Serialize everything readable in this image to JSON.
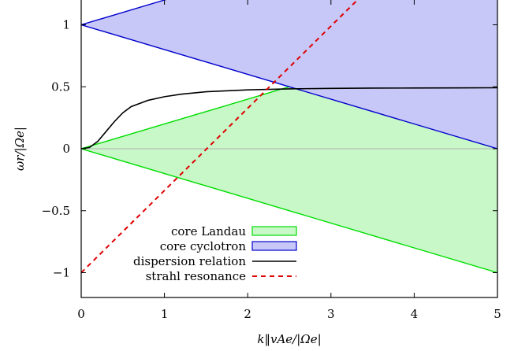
{
  "chart_data": {
    "type": "line",
    "title": "",
    "xlabel": "k‖vAe/|Ωe|",
    "ylabel": "ωr/|Ωe|",
    "xlim": [
      0,
      5
    ],
    "ylim": [
      -1.2,
      1.2
    ],
    "x_ticks": [
      0,
      1,
      2,
      3,
      4,
      5
    ],
    "x_tick_labels": [
      "0",
      "1",
      "2",
      "3",
      "4",
      "5"
    ],
    "y_ticks": [
      -1,
      -0.5,
      0,
      0.5,
      1
    ],
    "y_tick_labels": [
      "−1",
      "−0.5",
      "0",
      "0.5",
      "1"
    ],
    "zero_line": true,
    "legend_position": "bottom-left",
    "series": [
      {
        "name": "core Landau",
        "kind": "band",
        "color": "#00dd00",
        "fill": "#c8f8c8",
        "upper": {
          "x": [
            0,
            5
          ],
          "y": [
            0,
            1
          ]
        },
        "lower": {
          "x": [
            0,
            5
          ],
          "y": [
            0,
            -1
          ]
        }
      },
      {
        "name": "core cyclotron",
        "kind": "band",
        "color": "#0000cc",
        "fill": "#c8c8f8",
        "upper": {
          "x": [
            0,
            1.0,
            5
          ],
          "y": [
            1,
            1.2,
            2
          ]
        },
        "lower": {
          "x": [
            0,
            5
          ],
          "y": [
            1,
            0
          ]
        }
      },
      {
        "name": "dispersion relation",
        "kind": "line",
        "color": "#000000",
        "dash": "none",
        "x": [
          0,
          0.1,
          0.2,
          0.3,
          0.4,
          0.5,
          0.6,
          0.8,
          1.0,
          1.2,
          1.5,
          2.0,
          2.5,
          3.0,
          3.5,
          4.0,
          4.5,
          5.0
        ],
        "y": [
          0,
          0.01,
          0.06,
          0.14,
          0.22,
          0.29,
          0.34,
          0.39,
          0.42,
          0.44,
          0.46,
          0.475,
          0.483,
          0.487,
          0.489,
          0.49,
          0.491,
          0.492
        ]
      },
      {
        "name": "strahl resonance",
        "kind": "line",
        "color": "#dd0000",
        "dash": "dashed",
        "x": [
          0,
          3.8
        ],
        "y": [
          -1,
          1.52
        ]
      }
    ]
  }
}
